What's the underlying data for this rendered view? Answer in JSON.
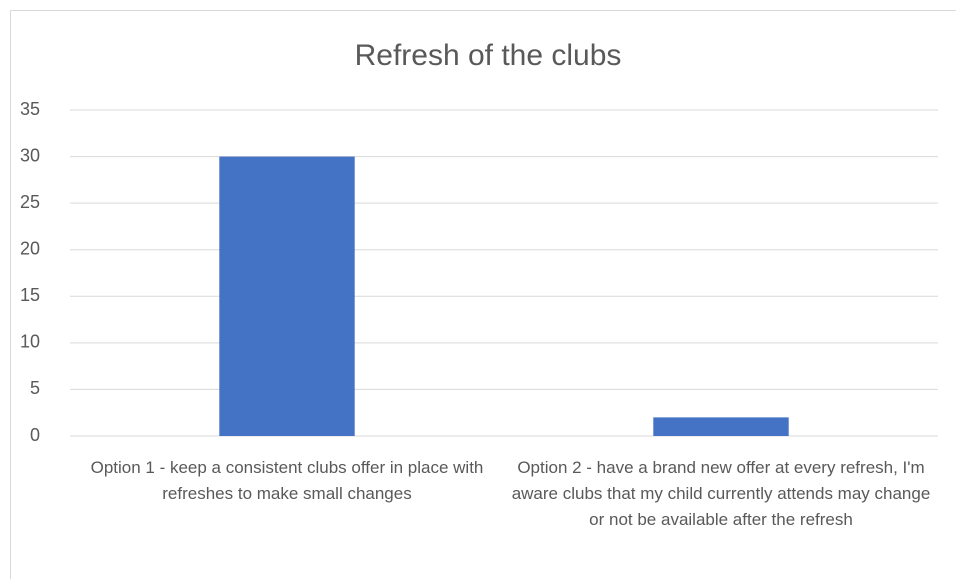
{
  "chart_data": {
    "type": "bar",
    "title": "Refresh of the clubs",
    "categories": [
      "Option 1 - keep a consistent clubs offer in place with refreshes to make small changes",
      "Option 2 - have a brand new offer at every refresh, I'm aware clubs that my child currently attends may change or not be available after the refresh"
    ],
    "values": [
      30,
      2
    ],
    "color": "#4472c4",
    "ylim": [
      0,
      35
    ],
    "yticks": [
      0,
      5,
      10,
      15,
      20,
      25,
      30,
      35
    ],
    "grid": true
  }
}
